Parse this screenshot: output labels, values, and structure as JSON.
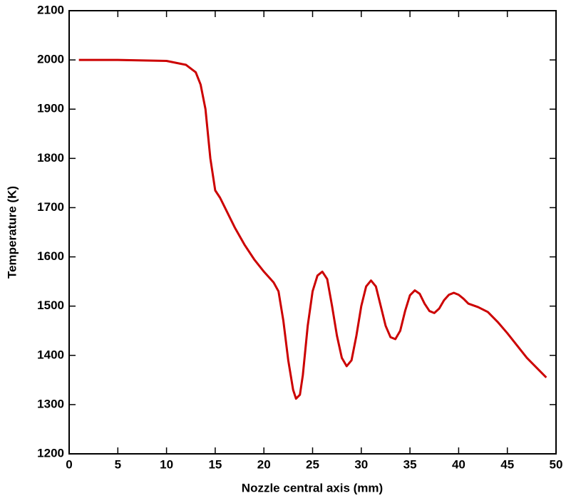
{
  "chart_data": {
    "type": "line",
    "x_label": "Nozzle central axis (mm)",
    "y_label": "Temperature (K)",
    "x": [
      1,
      5,
      10,
      12,
      13,
      13.5,
      14,
      14.5,
      15,
      15.5,
      16,
      17,
      18,
      19,
      20,
      21,
      21.5,
      22,
      22.5,
      23,
      23.3,
      23.7,
      24,
      24.5,
      25,
      25.5,
      26,
      26.5,
      27,
      27.5,
      28,
      28.5,
      29,
      29.5,
      30,
      30.5,
      31,
      31.5,
      32,
      32.5,
      33,
      33.5,
      34,
      34.5,
      35,
      35.5,
      36,
      36.5,
      37,
      37.5,
      38,
      38.5,
      39,
      39.5,
      40,
      40.5,
      41,
      42,
      43,
      44,
      45,
      46,
      47,
      48,
      49
    ],
    "series": [
      {
        "color": "#cc0000",
        "values": [
          2000,
          2000,
          1998,
          1990,
          1975,
          1950,
          1900,
          1800,
          1735,
          1720,
          1700,
          1660,
          1625,
          1595,
          1570,
          1548,
          1530,
          1470,
          1390,
          1330,
          1312,
          1320,
          1360,
          1460,
          1530,
          1562,
          1570,
          1555,
          1500,
          1440,
          1395,
          1378,
          1390,
          1440,
          1500,
          1540,
          1552,
          1540,
          1500,
          1460,
          1437,
          1433,
          1450,
          1490,
          1522,
          1532,
          1525,
          1505,
          1490,
          1486,
          1495,
          1512,
          1523,
          1527,
          1523,
          1515,
          1505,
          1498,
          1488,
          1468,
          1445,
          1420,
          1395,
          1375,
          1355
        ]
      }
    ],
    "xlim": [
      0,
      50
    ],
    "xticks": [
      0,
      5,
      10,
      15,
      20,
      25,
      30,
      35,
      40,
      45,
      50
    ],
    "ylim": [
      1200,
      2100
    ],
    "yticks": [
      1200,
      1300,
      1400,
      1500,
      1600,
      1700,
      1800,
      1900,
      2000,
      2100
    ]
  }
}
